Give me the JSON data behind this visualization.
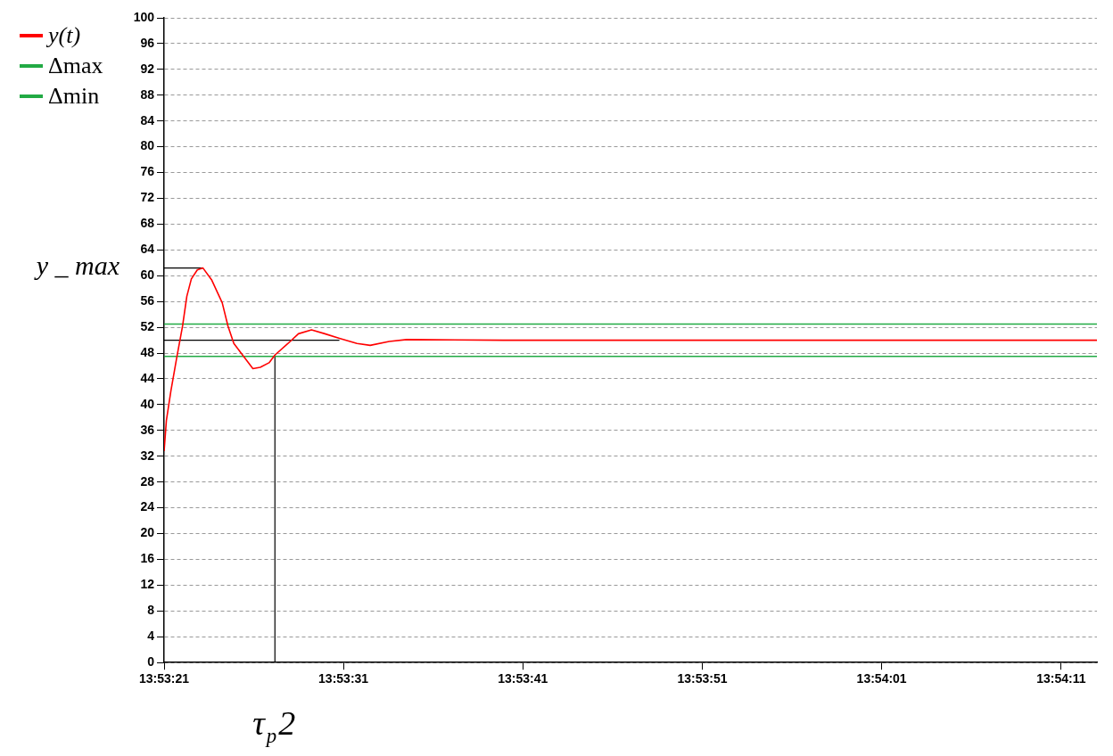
{
  "chart_data": {
    "type": "line",
    "xlim": [
      13.889167,
      13.903611
    ],
    "xticks": [
      {
        "value": 13.889167,
        "label": "13:53:21"
      },
      {
        "value": 13.891944,
        "label": "13:53:31"
      },
      {
        "value": 13.894722,
        "label": "13:53:41"
      },
      {
        "value": 13.8975,
        "label": "13:53:51"
      },
      {
        "value": 13.900278,
        "label": "13:54:01"
      },
      {
        "value": 13.903056,
        "label": "13:54:11"
      }
    ],
    "ylim": [
      0,
      100
    ],
    "yticks": [
      0,
      4,
      8,
      12,
      16,
      20,
      24,
      28,
      32,
      36,
      40,
      44,
      48,
      52,
      56,
      60,
      64,
      68,
      72,
      76,
      80,
      84,
      88,
      92,
      96,
      100
    ],
    "grid": "y",
    "legend": "top left",
    "marker": "none",
    "series": [
      {
        "name": "y(t)",
        "color": "#ff0000",
        "x": [
          13.889167,
          13.889203,
          13.889272,
          13.889361,
          13.889453,
          13.889519,
          13.889589,
          13.889681,
          13.889769,
          13.889906,
          13.890067,
          13.890156,
          13.890247,
          13.890406,
          13.890542,
          13.890656,
          13.890792,
          13.890883,
          13.891086,
          13.891247,
          13.89145,
          13.891656,
          13.891881,
          13.892153,
          13.892358,
          13.892653,
          13.892925,
          13.894417,
          13.903611
        ],
        "values": [
          32.8,
          37.6,
          42.1,
          47.2,
          52.2,
          56.8,
          59.5,
          60.9,
          61.2,
          59.3,
          55.8,
          52.2,
          49.5,
          47.4,
          45.6,
          45.8,
          46.5,
          47.7,
          49.5,
          51,
          51.6,
          51,
          50.3,
          49.5,
          49.2,
          49.8,
          50.1,
          50,
          50
        ]
      },
      {
        "name": "Δmax",
        "color": "#22aa44",
        "x": [
          13.889167,
          13.903611
        ],
        "values": [
          52.5,
          52.5
        ]
      },
      {
        "name": "Δmin",
        "color": "#22aa44",
        "x": [
          13.889167,
          13.903611
        ],
        "values": [
          47.5,
          47.5
        ]
      },
      {
        "color": "#000000",
        "x": [
          13.889167,
          13.889769
        ],
        "values": [
          61.2,
          61.2
        ]
      },
      {
        "color": "#000000",
        "x": [
          13.889167,
          13.891881
        ],
        "values": [
          50,
          50
        ]
      },
      {
        "color": "#000000",
        "x": [
          13.890883,
          13.890883
        ],
        "values": [
          0,
          47.7
        ]
      }
    ],
    "annotations": [
      "y _ max",
      "τ$_{p}$2"
    ]
  }
}
